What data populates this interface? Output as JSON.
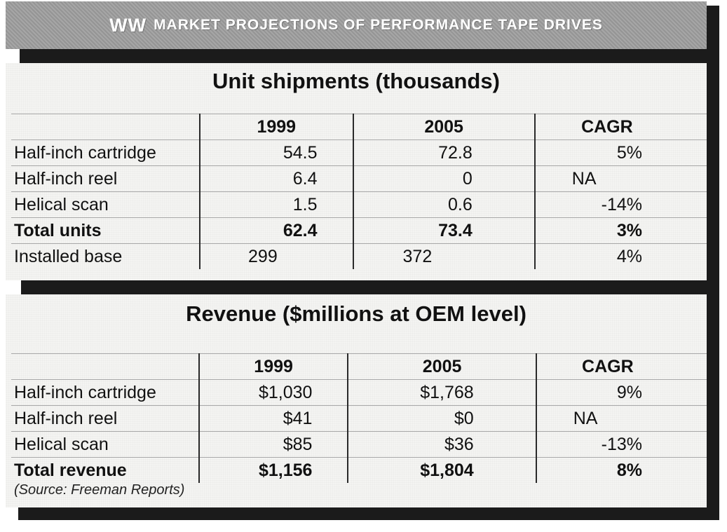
{
  "title": {
    "lead": "WW",
    "rest": "MARKET PROJECTIONS OF PERFORMANCE TAPE DRIVES"
  },
  "chart_data": [
    {
      "type": "table",
      "title": "Unit shipments (thousands)",
      "columns": [
        "",
        "1999",
        "2005",
        "CAGR"
      ],
      "rows": [
        {
          "label": "Half-inch cartridge",
          "y1999": "54.5",
          "y2005": "72.8",
          "cagr": "5%"
        },
        {
          "label": "Half-inch reel",
          "y1999": "6.4",
          "y2005": "0",
          "cagr": "NA"
        },
        {
          "label": "Helical scan",
          "y1999": "1.5",
          "y2005": "0.6",
          "cagr": "-14%"
        },
        {
          "label": "Total units",
          "y1999": "62.4",
          "y2005": "73.4",
          "cagr": "3%"
        },
        {
          "label": "Installed base",
          "y1999": "299",
          "y2005": "372",
          "cagr": "4%"
        }
      ]
    },
    {
      "type": "table",
      "title": "Revenue ($millions at OEM level)",
      "columns": [
        "",
        "1999",
        "2005",
        "CAGR"
      ],
      "rows": [
        {
          "label": "Half-inch cartridge",
          "y1999": "$1,030",
          "y2005": "$1,768",
          "cagr": "9%"
        },
        {
          "label": "Half-inch reel",
          "y1999": "$41",
          "y2005": "$0",
          "cagr": "NA"
        },
        {
          "label": "Helical scan",
          "y1999": "$85",
          "y2005": "$36",
          "cagr": "-13%"
        },
        {
          "label": "Total revenue",
          "y1999": "$1,156",
          "y2005": "$1,804",
          "cagr": "8%"
        }
      ]
    }
  ],
  "source": "(Source: Freeman Reports)"
}
